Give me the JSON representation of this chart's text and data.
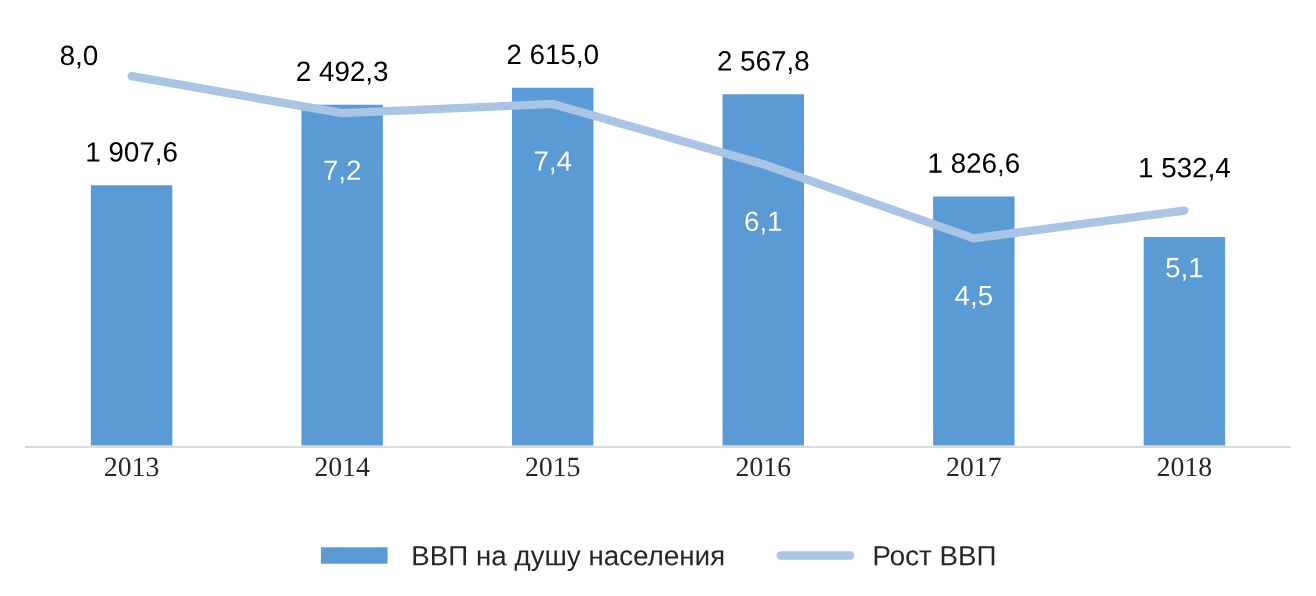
{
  "chart_data": {
    "type": "bar",
    "categories": [
      "2013",
      "2014",
      "2015",
      "2016",
      "2017",
      "2018"
    ],
    "series": [
      {
        "name": "ВВП на душу населения",
        "color": "#5b9bd5",
        "values": [
          1907.6,
          2492.3,
          2615.0,
          2567.8,
          1826.6,
          1532.4
        ],
        "value_labels": [
          "1 907,6",
          "2 492,3",
          "2 615,0",
          "2 567,8",
          "1 826,6",
          "1 532,4"
        ]
      },
      {
        "name": "Рост ВВП",
        "type": "line",
        "axis": "y2",
        "color": "#a9c4e4",
        "values": [
          8.0,
          7.2,
          7.4,
          6.1,
          4.5,
          5.1
        ],
        "value_labels": [
          "8,0",
          "7,2",
          "7,4",
          "6,1",
          "4,5",
          "5,1"
        ]
      }
    ],
    "legend": "bottom",
    "grid": false,
    "tick_labels": "x"
  }
}
